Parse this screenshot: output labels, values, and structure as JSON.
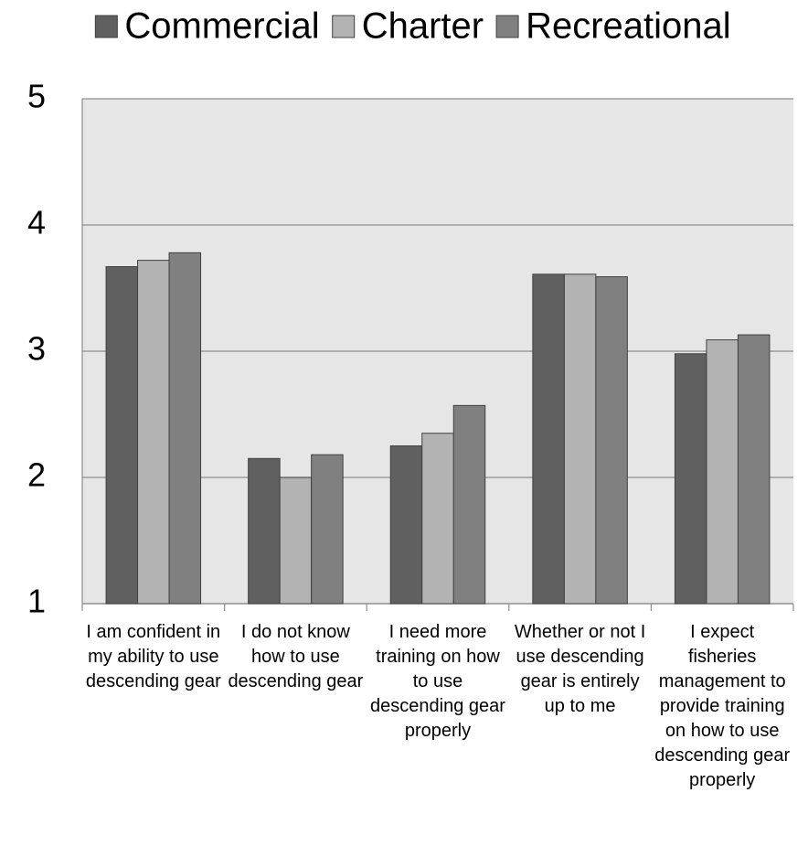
{
  "chart_data": {
    "type": "bar",
    "categories": [
      "I am confident in my ability to use descending gear",
      "I do not know how to use descending gear",
      "I need more training on how to use descending gear properly",
      "Whether or not I use descending gear is entirely up to me",
      "I expect fisheries management to provide training on how to use descending gear properly"
    ],
    "series": [
      {
        "name": "Commercial",
        "color": "#606060",
        "values": [
          3.67,
          2.15,
          2.25,
          3.61,
          2.98
        ]
      },
      {
        "name": "Charter",
        "color": "#b3b3b3",
        "values": [
          3.72,
          2.0,
          2.35,
          3.61,
          3.09
        ]
      },
      {
        "name": "Recreational",
        "color": "#808080",
        "values": [
          3.78,
          2.18,
          2.57,
          3.59,
          3.13
        ]
      }
    ],
    "ylim": [
      1,
      5
    ],
    "yticks": [
      1,
      2,
      3,
      4,
      5
    ],
    "grid": true,
    "legend": "top"
  }
}
